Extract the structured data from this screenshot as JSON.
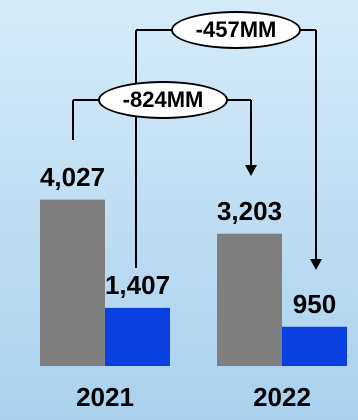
{
  "chart_data": {
    "type": "bar",
    "categories": [
      "2021",
      "2022"
    ],
    "series": [
      {
        "values": [
          4027,
          3203
        ],
        "color": "#7f7f7f"
      },
      {
        "values": [
          1407,
          950
        ],
        "color": "#0a3fe0"
      }
    ],
    "data_labels": [
      [
        "4,027",
        "3,203"
      ],
      [
        "1,407",
        "950"
      ]
    ],
    "annotations": [
      {
        "text": "-824MM",
        "from": {
          "series": 0,
          "category": 0
        },
        "to": {
          "series": 0,
          "category": 1
        }
      },
      {
        "text": "-457MM",
        "from": {
          "series": 1,
          "category": 0
        },
        "to": {
          "series": 1,
          "category": 1
        }
      }
    ],
    "title": "",
    "xlabel": "",
    "ylabel": "",
    "ylim": [
      0,
      4600
    ],
    "grid": false,
    "legend": "none"
  }
}
